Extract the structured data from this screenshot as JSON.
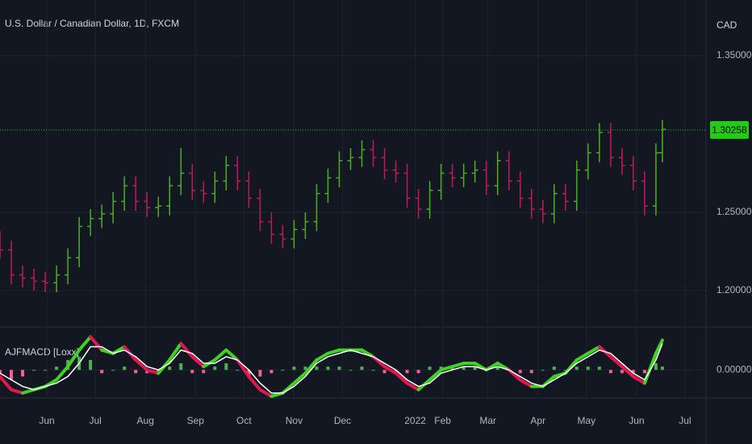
{
  "chart_data": [
    {
      "type": "ohlc",
      "title": "U.S. Dollar / Canadian Dollar, 1D, FXCM",
      "y_axis_label": "CAD",
      "x": [
        0,
        7,
        14,
        21,
        28,
        35,
        42,
        49,
        56,
        63,
        70,
        77,
        84,
        91,
        98,
        105,
        112,
        119,
        126,
        133,
        140,
        147,
        154,
        161,
        168,
        175,
        182,
        189,
        196,
        203,
        210,
        217,
        224,
        231,
        238,
        245,
        252,
        259,
        266,
        273,
        280,
        287,
        294,
        301,
        308,
        315,
        322,
        329,
        336,
        343,
        350,
        357,
        364,
        371,
        378,
        385,
        392,
        399,
        406,
        410
      ],
      "open": [
        1.232,
        1.226,
        1.21,
        1.208,
        1.206,
        1.205,
        1.21,
        1.221,
        1.241,
        1.246,
        1.249,
        1.257,
        1.267,
        1.257,
        1.253,
        1.254,
        1.267,
        1.275,
        1.264,
        1.262,
        1.27,
        1.28,
        1.27,
        1.259,
        1.244,
        1.236,
        1.233,
        1.239,
        1.244,
        1.262,
        1.272,
        1.283,
        1.285,
        1.29,
        1.285,
        1.277,
        1.275,
        1.259,
        1.252,
        1.264,
        1.275,
        1.272,
        1.275,
        1.277,
        1.267,
        1.283,
        1.27,
        1.259,
        1.252,
        1.249,
        1.262,
        1.257,
        1.277,
        1.288,
        1.301,
        1.285,
        1.28,
        1.27,
        1.254,
        1.288
      ],
      "high": [
        1.238,
        1.232,
        1.216,
        1.214,
        1.212,
        1.216,
        1.227,
        1.247,
        1.252,
        1.255,
        1.263,
        1.273,
        1.273,
        1.263,
        1.26,
        1.273,
        1.291,
        1.281,
        1.27,
        1.276,
        1.286,
        1.286,
        1.276,
        1.265,
        1.25,
        1.242,
        1.245,
        1.25,
        1.268,
        1.278,
        1.289,
        1.291,
        1.296,
        1.296,
        1.291,
        1.283,
        1.281,
        1.265,
        1.27,
        1.281,
        1.281,
        1.281,
        1.283,
        1.283,
        1.289,
        1.289,
        1.276,
        1.265,
        1.258,
        1.268,
        1.268,
        1.283,
        1.294,
        1.307,
        1.307,
        1.291,
        1.286,
        1.276,
        1.294,
        1.309
      ],
      "low": [
        1.22,
        1.204,
        1.202,
        1.2,
        1.199,
        1.199,
        1.204,
        1.215,
        1.235,
        1.24,
        1.243,
        1.251,
        1.251,
        1.247,
        1.247,
        1.248,
        1.261,
        1.258,
        1.256,
        1.256,
        1.264,
        1.264,
        1.253,
        1.238,
        1.23,
        1.227,
        1.227,
        1.233,
        1.238,
        1.256,
        1.266,
        1.277,
        1.279,
        1.279,
        1.271,
        1.269,
        1.253,
        1.246,
        1.246,
        1.258,
        1.266,
        1.266,
        1.269,
        1.261,
        1.261,
        1.264,
        1.253,
        1.246,
        1.243,
        1.243,
        1.251,
        1.251,
        1.271,
        1.282,
        1.279,
        1.274,
        1.264,
        1.248,
        1.248,
        1.282
      ],
      "close": [
        1.226,
        1.21,
        1.208,
        1.206,
        1.205,
        1.21,
        1.221,
        1.241,
        1.246,
        1.249,
        1.257,
        1.267,
        1.257,
        1.253,
        1.254,
        1.267,
        1.275,
        1.264,
        1.262,
        1.27,
        1.28,
        1.27,
        1.259,
        1.244,
        1.236,
        1.233,
        1.239,
        1.244,
        1.262,
        1.272,
        1.283,
        1.285,
        1.29,
        1.285,
        1.277,
        1.275,
        1.259,
        1.252,
        1.264,
        1.275,
        1.272,
        1.275,
        1.277,
        1.267,
        1.283,
        1.27,
        1.259,
        1.252,
        1.249,
        1.262,
        1.257,
        1.277,
        1.288,
        1.301,
        1.285,
        1.28,
        1.27,
        1.254,
        1.288,
        1.303
      ],
      "up_color": "#4caf1f",
      "down_color": "#c2185b",
      "xlim": [
        0,
        437
      ],
      "xticks": [
        {
          "value": 29,
          "label": "Jun"
        },
        {
          "value": 59,
          "label": "Jul"
        },
        {
          "value": 90,
          "label": "Aug"
        },
        {
          "value": 121,
          "label": "Sep"
        },
        {
          "value": 151,
          "label": "Oct"
        },
        {
          "value": 182,
          "label": "Nov"
        },
        {
          "value": 212,
          "label": "Dec"
        },
        {
          "value": 257,
          "label": "2022"
        },
        {
          "value": 274,
          "label": "Feb"
        },
        {
          "value": 302,
          "label": "Mar"
        },
        {
          "value": 333,
          "label": "Apr"
        },
        {
          "value": 363,
          "label": "May"
        },
        {
          "value": 394,
          "label": "Jun"
        },
        {
          "value": 424,
          "label": "Jul"
        }
      ],
      "ylim": [
        1.1768,
        1.3856
      ],
      "yticks": [
        {
          "value": 1.2,
          "label": "1.20000"
        },
        {
          "value": 1.25,
          "label": "1.25000"
        },
        {
          "value": 1.35,
          "label": "1.35000"
        }
      ],
      "last_price": 1.30258,
      "last_price_color": "#22cc14",
      "grid": true
    },
    {
      "type": "macd",
      "title": "AJFMACD [Loxx]",
      "series": [
        {
          "color": "#3fd124",
          "down_color": "#e0184e",
          "values": [
            -0.002,
            -0.006,
            -0.007,
            -0.006,
            -0.005,
            -0.003,
            0.001,
            0.006,
            0.01,
            0.006,
            0.005,
            0.007,
            0.003,
            0.0,
            -0.001,
            0.003,
            0.008,
            0.004,
            0.001,
            0.003,
            0.006,
            0.003,
            -0.002,
            -0.006,
            -0.008,
            -0.007,
            -0.004,
            -0.001,
            0.003,
            0.005,
            0.006,
            0.006,
            0.006,
            0.004,
            0.001,
            -0.001,
            -0.004,
            -0.006,
            -0.003,
            0.0,
            0.001,
            0.002,
            0.002,
            0.0,
            0.002,
            0.0,
            -0.003,
            -0.005,
            -0.005,
            -0.002,
            -0.001,
            0.003,
            0.005,
            0.007,
            0.004,
            0.001,
            -0.002,
            -0.004,
            0.005,
            0.009
          ]
        },
        {
          "color": "#ffffff",
          "values": [
            -0.001,
            -0.003,
            -0.005,
            -0.006,
            -0.005,
            -0.004,
            -0.002,
            0.002,
            0.007,
            0.007,
            0.005,
            0.006,
            0.004,
            0.001,
            0.0,
            0.002,
            0.006,
            0.005,
            0.002,
            0.002,
            0.004,
            0.003,
            0.0,
            -0.004,
            -0.007,
            -0.007,
            -0.005,
            -0.002,
            0.002,
            0.004,
            0.005,
            0.006,
            0.005,
            0.004,
            0.002,
            0.0,
            -0.003,
            -0.005,
            -0.004,
            -0.001,
            0.0,
            0.001,
            0.001,
            0.0,
            0.001,
            0.0,
            -0.002,
            -0.004,
            -0.005,
            -0.003,
            -0.001,
            0.002,
            0.004,
            0.006,
            0.005,
            0.002,
            -0.001,
            -0.003,
            0.003,
            0.008
          ]
        }
      ],
      "histogram": {
        "up_color": "#4caf50",
        "down_color": "#f06292",
        "values": [
          -0.001,
          -0.003,
          -0.002,
          0.0,
          0.0,
          0.001,
          0.003,
          0.004,
          0.003,
          -0.001,
          0.0,
          0.001,
          -0.001,
          -0.001,
          -0.001,
          0.001,
          0.002,
          -0.001,
          -0.001,
          0.001,
          0.002,
          0.0,
          -0.002,
          -0.002,
          -0.001,
          0.0,
          0.001,
          0.001,
          0.001,
          0.001,
          0.001,
          0.0,
          0.001,
          0.0,
          -0.001,
          -0.001,
          -0.001,
          -0.001,
          0.001,
          0.001,
          0.001,
          0.001,
          0.001,
          0.0,
          0.001,
          0.0,
          -0.001,
          -0.001,
          0.0,
          0.001,
          0.0,
          0.001,
          0.001,
          0.001,
          -0.001,
          -0.001,
          -0.001,
          -0.001,
          0.002,
          0.001
        ]
      },
      "ylim": [
        -0.0085,
        0.013
      ],
      "yticks": [
        {
          "value": 0,
          "label": "0.00000"
        }
      ],
      "grid": true
    }
  ]
}
